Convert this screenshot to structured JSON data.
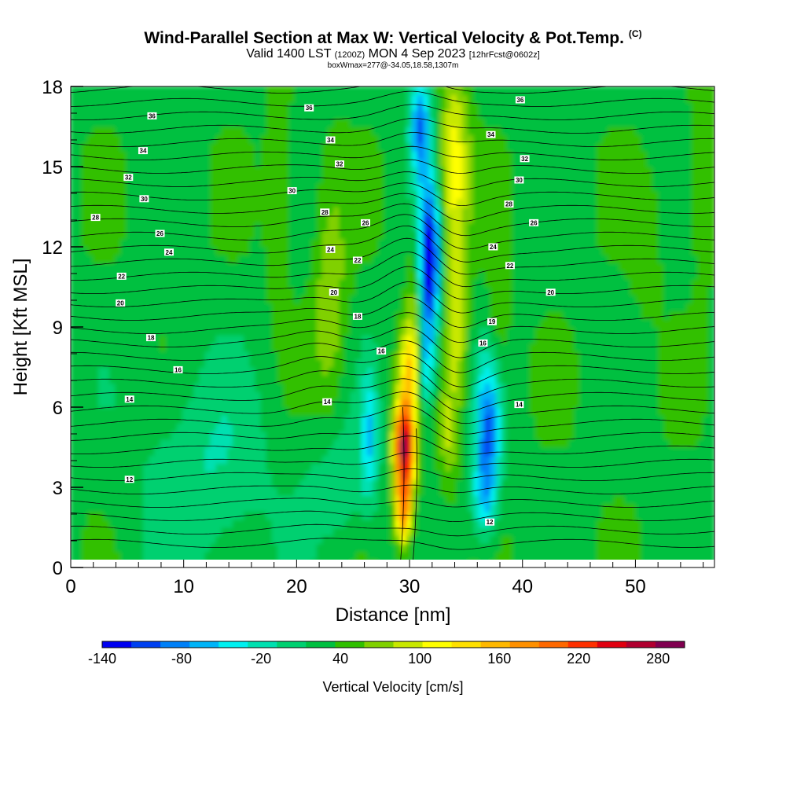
{
  "header": {
    "title": "Wind-Parallel Section at Max W: Vertical Velocity & Pot.Temp.",
    "copyright": "(C)",
    "valid_prefix": "Valid 1400 LST",
    "valid_z": "(1200Z)",
    "valid_date": "MON 4 Sep 2023",
    "forecast": "[12hrFcst@0602z]",
    "box_line": "boxWmax=277@-34.05,18.58,1307m"
  },
  "chart_data": {
    "type": "heatmap",
    "xlabel": "Distance [nm]",
    "ylabel": "Height [Kft MSL]",
    "xlim": [
      0,
      57
    ],
    "ylim": [
      0,
      18
    ],
    "x_ticks": [
      0,
      10,
      20,
      30,
      40,
      50
    ],
    "y_ticks": [
      0,
      3,
      6,
      9,
      12,
      15,
      18
    ],
    "colorbar": {
      "title": "Vertical Velocity [cm/s]",
      "tick_labels": [
        "-140",
        "-80",
        "-20",
        "40",
        "100",
        "160",
        "220",
        "280"
      ],
      "tick_values": [
        -140,
        -80,
        -20,
        40,
        100,
        160,
        220,
        280
      ],
      "range": [
        -140,
        300
      ],
      "colors": [
        "#0000f0",
        "#0040f0",
        "#0080f8",
        "#00b4f8",
        "#00f0f0",
        "#00e0b0",
        "#00d070",
        "#00c040",
        "#30c000",
        "#80d000",
        "#c8e800",
        "#ffff00",
        "#ffe000",
        "#ffb800",
        "#ff9000",
        "#ff6800",
        "#ff3000",
        "#e00010",
        "#b00030",
        "#800050"
      ]
    },
    "wmax_cm_s": 277,
    "features": [
      {
        "name": "updraft_core",
        "x": 29.6,
        "z": 4.5,
        "w": 277
      },
      {
        "name": "downdraft_core",
        "x": 31.8,
        "z": 11.5,
        "w": -140
      },
      {
        "name": "downdraft_secondary",
        "x": 37,
        "z": 5,
        "w": -90
      },
      {
        "name": "upward_plume",
        "x": 34,
        "z": 15,
        "w": 100
      }
    ],
    "isentrope_labels": [
      {
        "text": "36",
        "x": 7.2,
        "z": 16.9
      },
      {
        "text": "34",
        "x": 6.4,
        "z": 15.6
      },
      {
        "text": "32",
        "x": 5.1,
        "z": 14.6
      },
      {
        "text": "30",
        "x": 6.5,
        "z": 13.8
      },
      {
        "text": "28",
        "x": 2.2,
        "z": 13.1
      },
      {
        "text": "26",
        "x": 7.9,
        "z": 12.5
      },
      {
        "text": "24",
        "x": 8.7,
        "z": 11.8
      },
      {
        "text": "22",
        "x": 4.5,
        "z": 10.9
      },
      {
        "text": "20",
        "x": 4.4,
        "z": 9.9
      },
      {
        "text": "18",
        "x": 7.1,
        "z": 8.6
      },
      {
        "text": "16",
        "x": 9.5,
        "z": 7.4
      },
      {
        "text": "14",
        "x": 5.2,
        "z": 6.3
      },
      {
        "text": "12",
        "x": 5.2,
        "z": 3.3
      },
      {
        "text": "36",
        "x": 21.1,
        "z": 17.2
      },
      {
        "text": "34",
        "x": 23.0,
        "z": 16.0
      },
      {
        "text": "32",
        "x": 23.8,
        "z": 15.1
      },
      {
        "text": "30",
        "x": 19.6,
        "z": 14.1
      },
      {
        "text": "28",
        "x": 22.5,
        "z": 13.3
      },
      {
        "text": "26",
        "x": 26.1,
        "z": 12.9
      },
      {
        "text": "24",
        "x": 23.0,
        "z": 11.9
      },
      {
        "text": "22",
        "x": 25.4,
        "z": 11.5
      },
      {
        "text": "20",
        "x": 23.3,
        "z": 10.3
      },
      {
        "text": "18",
        "x": 25.4,
        "z": 9.4
      },
      {
        "text": "16",
        "x": 27.5,
        "z": 8.1
      },
      {
        "text": "14",
        "x": 22.7,
        "z": 6.2
      },
      {
        "text": "36",
        "x": 39.8,
        "z": 17.5
      },
      {
        "text": "34",
        "x": 37.2,
        "z": 16.2
      },
      {
        "text": "32",
        "x": 40.2,
        "z": 15.3
      },
      {
        "text": "30",
        "x": 39.7,
        "z": 14.5
      },
      {
        "text": "28",
        "x": 38.8,
        "z": 13.6
      },
      {
        "text": "26",
        "x": 41.0,
        "z": 12.9
      },
      {
        "text": "24",
        "x": 37.4,
        "z": 12.0
      },
      {
        "text": "22",
        "x": 38.9,
        "z": 11.3
      },
      {
        "text": "20",
        "x": 42.5,
        "z": 10.3
      },
      {
        "text": "19",
        "x": 37.3,
        "z": 9.2
      },
      {
        "text": "16",
        "x": 36.5,
        "z": 8.4
      },
      {
        "text": "14",
        "x": 39.7,
        "z": 6.1
      },
      {
        "text": "12",
        "x": 37.1,
        "z": 1.7
      }
    ]
  }
}
